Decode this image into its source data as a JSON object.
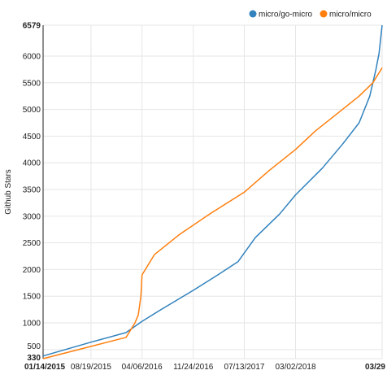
{
  "chart_data": {
    "type": "line",
    "title": "",
    "xlabel": "",
    "ylabel": "Github Stars",
    "legend": {
      "placement": "top-right"
    },
    "grid": true,
    "x_ticks": [
      {
        "label": "01/14/2015",
        "date": "2015-01-14",
        "bold": true
      },
      {
        "label": "08/19/2015",
        "date": "2015-08-19",
        "bold": false
      },
      {
        "label": "04/06/2016",
        "date": "2016-04-06",
        "bold": false
      },
      {
        "label": "11/24/2016",
        "date": "2016-11-24",
        "bold": false
      },
      {
        "label": "07/13/2017",
        "date": "2017-07-13",
        "bold": false
      },
      {
        "label": "03/02/2018",
        "date": "2018-03-02",
        "bold": false
      },
      {
        "label": "03/29",
        "date": "2019-03-29",
        "bold": true
      }
    ],
    "xlim": [
      "2015-01-14",
      "2019-03-29"
    ],
    "y_ticks": [
      {
        "label": "330",
        "value": 330,
        "bold": true
      },
      {
        "label": "500",
        "value": 500,
        "bold": false
      },
      {
        "label": "1000",
        "value": 1000,
        "bold": false
      },
      {
        "label": "1500",
        "value": 1500,
        "bold": false
      },
      {
        "label": "2000",
        "value": 2000,
        "bold": false
      },
      {
        "label": "2500",
        "value": 2500,
        "bold": false
      },
      {
        "label": "3000",
        "value": 3000,
        "bold": false
      },
      {
        "label": "3500",
        "value": 3500,
        "bold": false
      },
      {
        "label": "4000",
        "value": 4000,
        "bold": false
      },
      {
        "label": "4500",
        "value": 4500,
        "bold": false
      },
      {
        "label": "5000",
        "value": 5000,
        "bold": false
      },
      {
        "label": "5500",
        "value": 5500,
        "bold": false
      },
      {
        "label": "6000",
        "value": 6000,
        "bold": false
      },
      {
        "label": "6579",
        "value": 6579,
        "bold": true
      }
    ],
    "ylim": [
      330,
      6579
    ],
    "series": [
      {
        "name": "micro/go-micro",
        "color": "#3182bd",
        "points": [
          [
            "2015-01-14",
            380
          ],
          [
            "2015-08-19",
            640
          ],
          [
            "2016-01-25",
            820
          ],
          [
            "2016-04-06",
            1030
          ],
          [
            "2016-07-01",
            1250
          ],
          [
            "2016-11-24",
            1610
          ],
          [
            "2017-03-15",
            1900
          ],
          [
            "2017-06-15",
            2150
          ],
          [
            "2017-09-01",
            2600
          ],
          [
            "2017-12-20",
            3040
          ],
          [
            "2018-03-02",
            3400
          ],
          [
            "2018-07-01",
            3900
          ],
          [
            "2018-10-01",
            4350
          ],
          [
            "2018-12-15",
            4750
          ],
          [
            "2019-02-01",
            5250
          ],
          [
            "2019-03-01",
            5750
          ],
          [
            "2019-03-15",
            6050
          ],
          [
            "2019-03-29",
            6579
          ]
        ]
      },
      {
        "name": "micro/micro",
        "color": "#ff7f0e",
        "points": [
          [
            "2015-01-14",
            330
          ],
          [
            "2015-08-19",
            560
          ],
          [
            "2016-01-25",
            730
          ],
          [
            "2016-03-05",
            1000
          ],
          [
            "2016-03-20",
            1150
          ],
          [
            "2016-04-01",
            1500
          ],
          [
            "2016-04-06",
            1900
          ],
          [
            "2016-06-01",
            2280
          ],
          [
            "2016-09-20",
            2650
          ],
          [
            "2017-02-10",
            3050
          ],
          [
            "2017-07-13",
            3450
          ],
          [
            "2017-11-01",
            3850
          ],
          [
            "2018-03-02",
            4250
          ],
          [
            "2018-06-01",
            4600
          ],
          [
            "2018-09-15",
            4950
          ],
          [
            "2018-12-15",
            5250
          ],
          [
            "2019-02-15",
            5500
          ],
          [
            "2019-03-29",
            5780
          ]
        ]
      }
    ]
  }
}
